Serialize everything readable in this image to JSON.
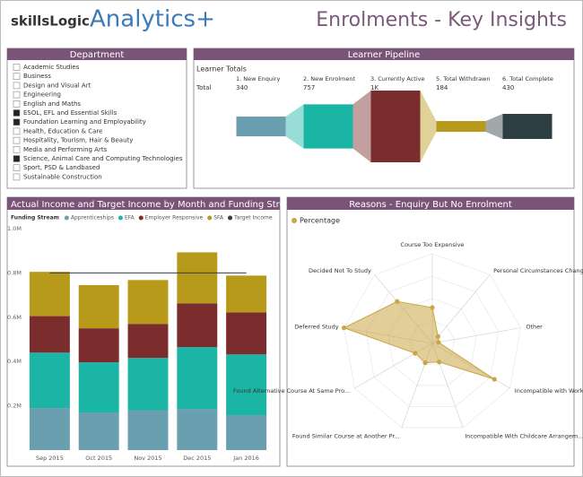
{
  "header": {
    "brand_a": "skillsLogic",
    "brand_b": "Analytics+",
    "title": "Enrolments - Key Insights"
  },
  "department": {
    "title": "Department",
    "items": [
      {
        "label": "Academic Studies",
        "checked": false
      },
      {
        "label": "Business",
        "checked": false
      },
      {
        "label": "Design and Visual Art",
        "checked": false
      },
      {
        "label": "Engineering",
        "checked": false
      },
      {
        "label": "English and Maths",
        "checked": false
      },
      {
        "label": "ESOL, EFL and Essential Skills",
        "checked": true
      },
      {
        "label": "Foundation Learning and Employability",
        "checked": true
      },
      {
        "label": "Health, Education & Care",
        "checked": false
      },
      {
        "label": "Hospitality, Tourism, Hair & Beauty",
        "checked": false
      },
      {
        "label": "Media and Performing Arts",
        "checked": false
      },
      {
        "label": "Science, Animal Care and Computing Technologies",
        "checked": true
      },
      {
        "label": "Sport, PSD & Landbased",
        "checked": false
      },
      {
        "label": "Sustainable Construction",
        "checked": false
      }
    ]
  },
  "pipeline": {
    "title": "Learner Pipeline",
    "subtitle": "Learner Totals",
    "row_label": "Total",
    "stages": [
      "1. New Enquiry",
      "2. New Enrolment",
      "3. Currently Active",
      "5. Total Withdrawn",
      "6. Total Complete"
    ],
    "values": [
      340,
      757,
      1230,
      184,
      430
    ],
    "value_labels": [
      "340",
      "757",
      "1K",
      "184",
      "430"
    ],
    "colors": [
      "#6a9fb0",
      "#1bb5a5",
      "#7b2d2d",
      "#b89a1a",
      "#2d3f42"
    ]
  },
  "chart_data": [
    {
      "type": "bar",
      "stacked": true,
      "title": "Actual Income and Target Income by Month and Funding Stre...",
      "legend_title": "Funding Stream",
      "categories": [
        "Sep 2015",
        "Oct 2015",
        "Nov 2015",
        "Dec 2015",
        "Jan 2016"
      ],
      "series": [
        {
          "name": "Apprenticeships",
          "color": "#6a9fb0",
          "values": [
            0.19,
            0.17,
            0.18,
            0.186,
            0.158
          ]
        },
        {
          "name": "EFA",
          "color": "#1bb5a5",
          "values": [
            0.25,
            0.226,
            0.236,
            0.279,
            0.274
          ]
        },
        {
          "name": "Employer Responsive",
          "color": "#7b2d2d",
          "values": [
            0.165,
            0.154,
            0.154,
            0.198,
            0.19
          ]
        },
        {
          "name": "SFA",
          "color": "#b89a1a",
          "values": [
            0.2,
            0.195,
            0.198,
            0.23,
            0.166
          ]
        },
        {
          "name": "Target Income",
          "color": "#2d3f42",
          "kind": "line",
          "values": [
            0.8,
            0.8,
            0.8,
            0.8,
            0.8
          ]
        }
      ],
      "ylim": [
        0,
        1.0
      ],
      "yticks": [
        {
          "value": 0.2,
          "label": "0.2M"
        },
        {
          "value": 0.4,
          "label": "0.4M"
        },
        {
          "value": 0.6,
          "label": "0.6M"
        },
        {
          "value": 0.8,
          "label": "0.8M"
        },
        {
          "value": 1.0,
          "label": "1.0M"
        }
      ]
    },
    {
      "type": "radar",
      "title": "Reasons - Enquiry But No Enrolment",
      "categories": [
        "Course Too Expensive",
        "Personal Circumstances Changed",
        "Other",
        "Incompatible with Work Commitment",
        "Incompatible With Childcare Arrangem...",
        "Found Similar Course at Another Pr...",
        "Found Alternative Course At Same Pro...",
        "Deferred Study",
        "Decided Not To Study"
      ],
      "series": [
        {
          "name": "Percentage",
          "color": "#c9a544",
          "values": [
            40,
            10,
            7,
            80,
            22,
            23,
            22,
            100,
            61
          ]
        }
      ],
      "rlim": [
        0,
        100
      ]
    }
  ]
}
